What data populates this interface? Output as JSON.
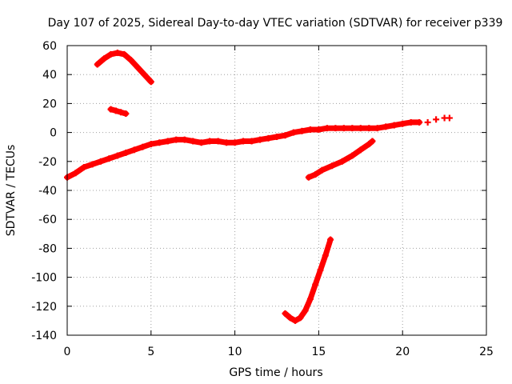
{
  "chart_data": {
    "type": "scatter",
    "title": "Day 107 of 2025, Sidereal Day-to-day VTEC variation (SDTVAR) for receiver p339",
    "xlabel": "GPS time / hours",
    "ylabel": "SDTVAR / TECUs",
    "xlim": [
      0,
      25
    ],
    "ylim": [
      -140,
      60
    ],
    "xticks": [
      0,
      5,
      10,
      15,
      20,
      25
    ],
    "yticks": [
      -140,
      -120,
      -100,
      -80,
      -60,
      -40,
      -20,
      0,
      20,
      40,
      60
    ],
    "grid": true,
    "legend": "none",
    "marker": "plus",
    "color": "#ff0000",
    "series": [
      {
        "name": "main-track",
        "points": [
          [
            0,
            -31
          ],
          [
            0.5,
            -28
          ],
          [
            1,
            -24
          ],
          [
            1.5,
            -22
          ],
          [
            2,
            -20
          ],
          [
            2.5,
            -18
          ],
          [
            3,
            -16
          ],
          [
            3.5,
            -14
          ],
          [
            4,
            -12
          ],
          [
            4.5,
            -10
          ],
          [
            5,
            -8
          ],
          [
            5.5,
            -7
          ],
          [
            6,
            -6
          ],
          [
            6.5,
            -5
          ],
          [
            7,
            -5
          ],
          [
            7.5,
            -6
          ],
          [
            8,
            -7
          ],
          [
            8.5,
            -6
          ],
          [
            9,
            -6
          ],
          [
            9.5,
            -7
          ],
          [
            10,
            -7
          ],
          [
            10.5,
            -6
          ],
          [
            11,
            -6
          ],
          [
            11.5,
            -5
          ],
          [
            12,
            -4
          ],
          [
            12.5,
            -3
          ],
          [
            13,
            -2
          ],
          [
            13.5,
            0
          ],
          [
            14,
            1
          ],
          [
            14.5,
            2
          ],
          [
            15,
            2
          ],
          [
            15.5,
            3
          ],
          [
            16,
            3
          ],
          [
            16.5,
            3
          ],
          [
            17,
            3
          ],
          [
            17.5,
            3
          ],
          [
            18,
            3
          ],
          [
            18.5,
            3
          ],
          [
            19,
            4
          ],
          [
            19.5,
            5
          ],
          [
            20,
            6
          ],
          [
            20.5,
            7
          ],
          [
            21,
            7
          ]
        ]
      },
      {
        "name": "trailing-points",
        "points": [
          [
            21.5,
            7
          ],
          [
            22,
            9
          ],
          [
            22.5,
            10
          ],
          [
            22.8,
            10
          ]
        ]
      },
      {
        "name": "top-arc",
        "points": [
          [
            1.8,
            47
          ],
          [
            2.2,
            51
          ],
          [
            2.6,
            54
          ],
          [
            3,
            55
          ],
          [
            3.4,
            54
          ],
          [
            3.8,
            50
          ],
          [
            4.2,
            45
          ],
          [
            4.6,
            40
          ],
          [
            5,
            35
          ]
        ]
      },
      {
        "name": "short-segment",
        "points": [
          [
            2.6,
            16
          ],
          [
            2.9,
            15
          ],
          [
            3.2,
            14
          ],
          [
            3.5,
            13
          ]
        ]
      },
      {
        "name": "rising-segment",
        "points": [
          [
            14.4,
            -31
          ],
          [
            14.8,
            -29
          ],
          [
            15.2,
            -26
          ],
          [
            15.8,
            -23
          ],
          [
            16.4,
            -20
          ],
          [
            17,
            -16
          ],
          [
            17.5,
            -12
          ],
          [
            18,
            -8
          ],
          [
            18.2,
            -6
          ]
        ]
      },
      {
        "name": "deep-dip",
        "points": [
          [
            13,
            -125
          ],
          [
            13.3,
            -128
          ],
          [
            13.6,
            -130
          ],
          [
            13.9,
            -128
          ],
          [
            14.2,
            -123
          ],
          [
            14.5,
            -115
          ],
          [
            14.8,
            -105
          ],
          [
            15.1,
            -95
          ],
          [
            15.4,
            -85
          ],
          [
            15.7,
            -74
          ]
        ]
      }
    ]
  }
}
